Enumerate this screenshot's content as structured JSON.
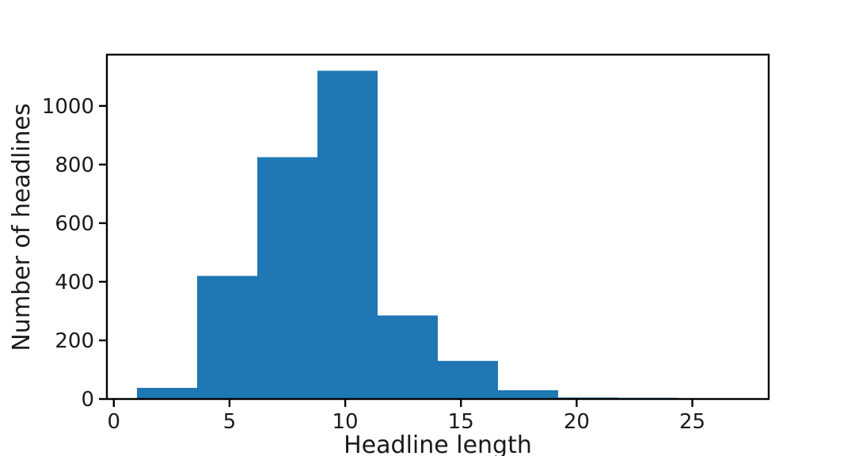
{
  "chart_data": {
    "type": "bar",
    "title": "",
    "xlabel": "Headline length",
    "ylabel": "Number of headlines",
    "xlim": [
      -0.3,
      28.3
    ],
    "ylim": [
      0,
      1175
    ],
    "grid": false,
    "xticks": [
      0,
      5,
      10,
      15,
      20,
      25
    ],
    "yticks": [
      0,
      200,
      400,
      600,
      800,
      1000
    ],
    "bins": [
      {
        "x0": 1.0,
        "x1": 3.6,
        "count": 38
      },
      {
        "x0": 3.6,
        "x1": 6.2,
        "count": 420
      },
      {
        "x0": 6.2,
        "x1": 8.8,
        "count": 825
      },
      {
        "x0": 8.8,
        "x1": 11.4,
        "count": 1120
      },
      {
        "x0": 11.4,
        "x1": 14.0,
        "count": 285
      },
      {
        "x0": 14.0,
        "x1": 16.6,
        "count": 130
      },
      {
        "x0": 16.6,
        "x1": 19.2,
        "count": 30
      },
      {
        "x0": 19.2,
        "x1": 21.8,
        "count": 5
      },
      {
        "x0": 21.8,
        "x1": 24.4,
        "count": 4
      },
      {
        "x0": 24.4,
        "x1": 27.0,
        "count": 2
      }
    ],
    "colors": {
      "bar": "#1f77b4",
      "axis": "#000000"
    }
  }
}
